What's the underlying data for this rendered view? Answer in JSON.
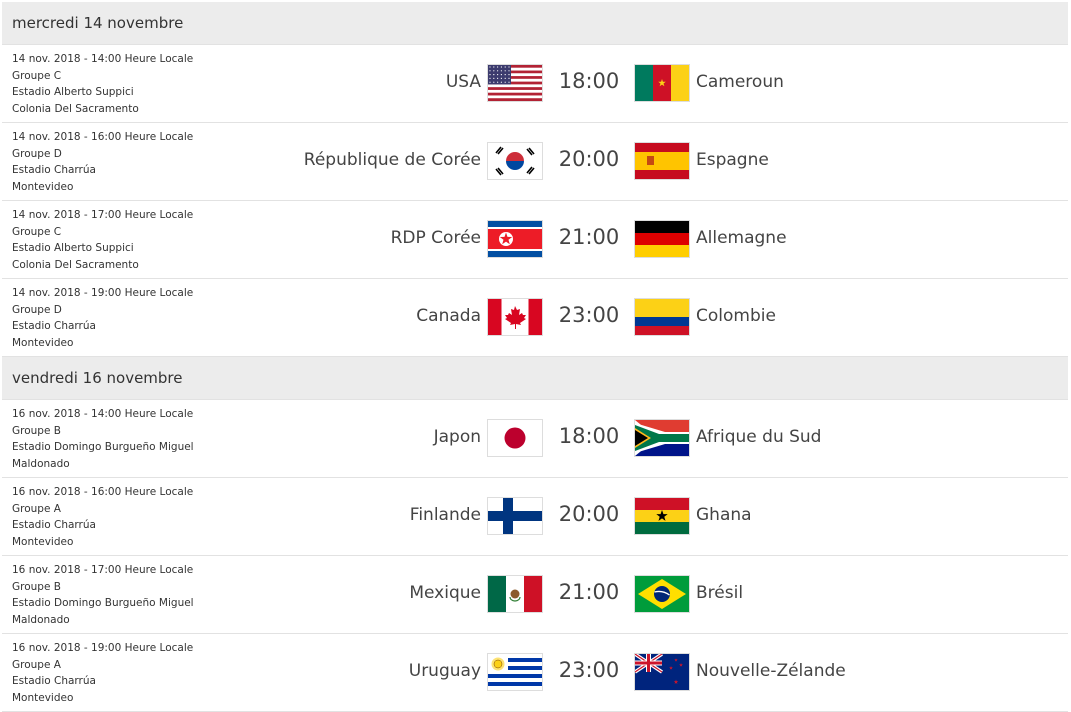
{
  "days": [
    {
      "label": "mercredi 14 novembre",
      "matches": [
        {
          "datetime": "14 nov. 2018 - 14:00 Heure Locale",
          "group": "Groupe C",
          "stadium": "Estadio Alberto Suppici",
          "city": "Colonia Del Sacramento",
          "home": "USA",
          "home_flag": "us",
          "time": "18:00",
          "away": "Cameroun",
          "away_flag": "cm"
        },
        {
          "datetime": "14 nov. 2018 - 16:00 Heure Locale",
          "group": "Groupe D",
          "stadium": "Estadio Charrúa",
          "city": "Montevideo",
          "home": "République de Corée",
          "home_flag": "kr",
          "time": "20:00",
          "away": "Espagne",
          "away_flag": "es"
        },
        {
          "datetime": "14 nov. 2018 - 17:00 Heure Locale",
          "group": "Groupe C",
          "stadium": "Estadio Alberto Suppici",
          "city": "Colonia Del Sacramento",
          "home": "RDP Corée",
          "home_flag": "kp",
          "time": "21:00",
          "away": "Allemagne",
          "away_flag": "de"
        },
        {
          "datetime": "14 nov. 2018 - 19:00 Heure Locale",
          "group": "Groupe D",
          "stadium": "Estadio Charrúa",
          "city": "Montevideo",
          "home": "Canada",
          "home_flag": "ca",
          "time": "23:00",
          "away": "Colombie",
          "away_flag": "co"
        }
      ]
    },
    {
      "label": "vendredi 16 novembre",
      "matches": [
        {
          "datetime": "16 nov. 2018 - 14:00 Heure Locale",
          "group": "Groupe B",
          "stadium": "Estadio Domingo Burgueño Miguel",
          "city": "Maldonado",
          "home": "Japon",
          "home_flag": "jp",
          "time": "18:00",
          "away": "Afrique du Sud",
          "away_flag": "za"
        },
        {
          "datetime": "16 nov. 2018 - 16:00 Heure Locale",
          "group": "Groupe A",
          "stadium": "Estadio Charrúa",
          "city": "Montevideo",
          "home": "Finlande",
          "home_flag": "fi",
          "time": "20:00",
          "away": "Ghana",
          "away_flag": "gh"
        },
        {
          "datetime": "16 nov. 2018 - 17:00 Heure Locale",
          "group": "Groupe B",
          "stadium": "Estadio Domingo Burgueño Miguel",
          "city": "Maldonado",
          "home": "Mexique",
          "home_flag": "mx",
          "time": "21:00",
          "away": "Brésil",
          "away_flag": "br"
        },
        {
          "datetime": "16 nov. 2018 - 19:00 Heure Locale",
          "group": "Groupe A",
          "stadium": "Estadio Charrúa",
          "city": "Montevideo",
          "home": "Uruguay",
          "home_flag": "uy",
          "time": "23:00",
          "away": "Nouvelle-Zélande",
          "away_flag": "nz"
        }
      ]
    }
  ]
}
